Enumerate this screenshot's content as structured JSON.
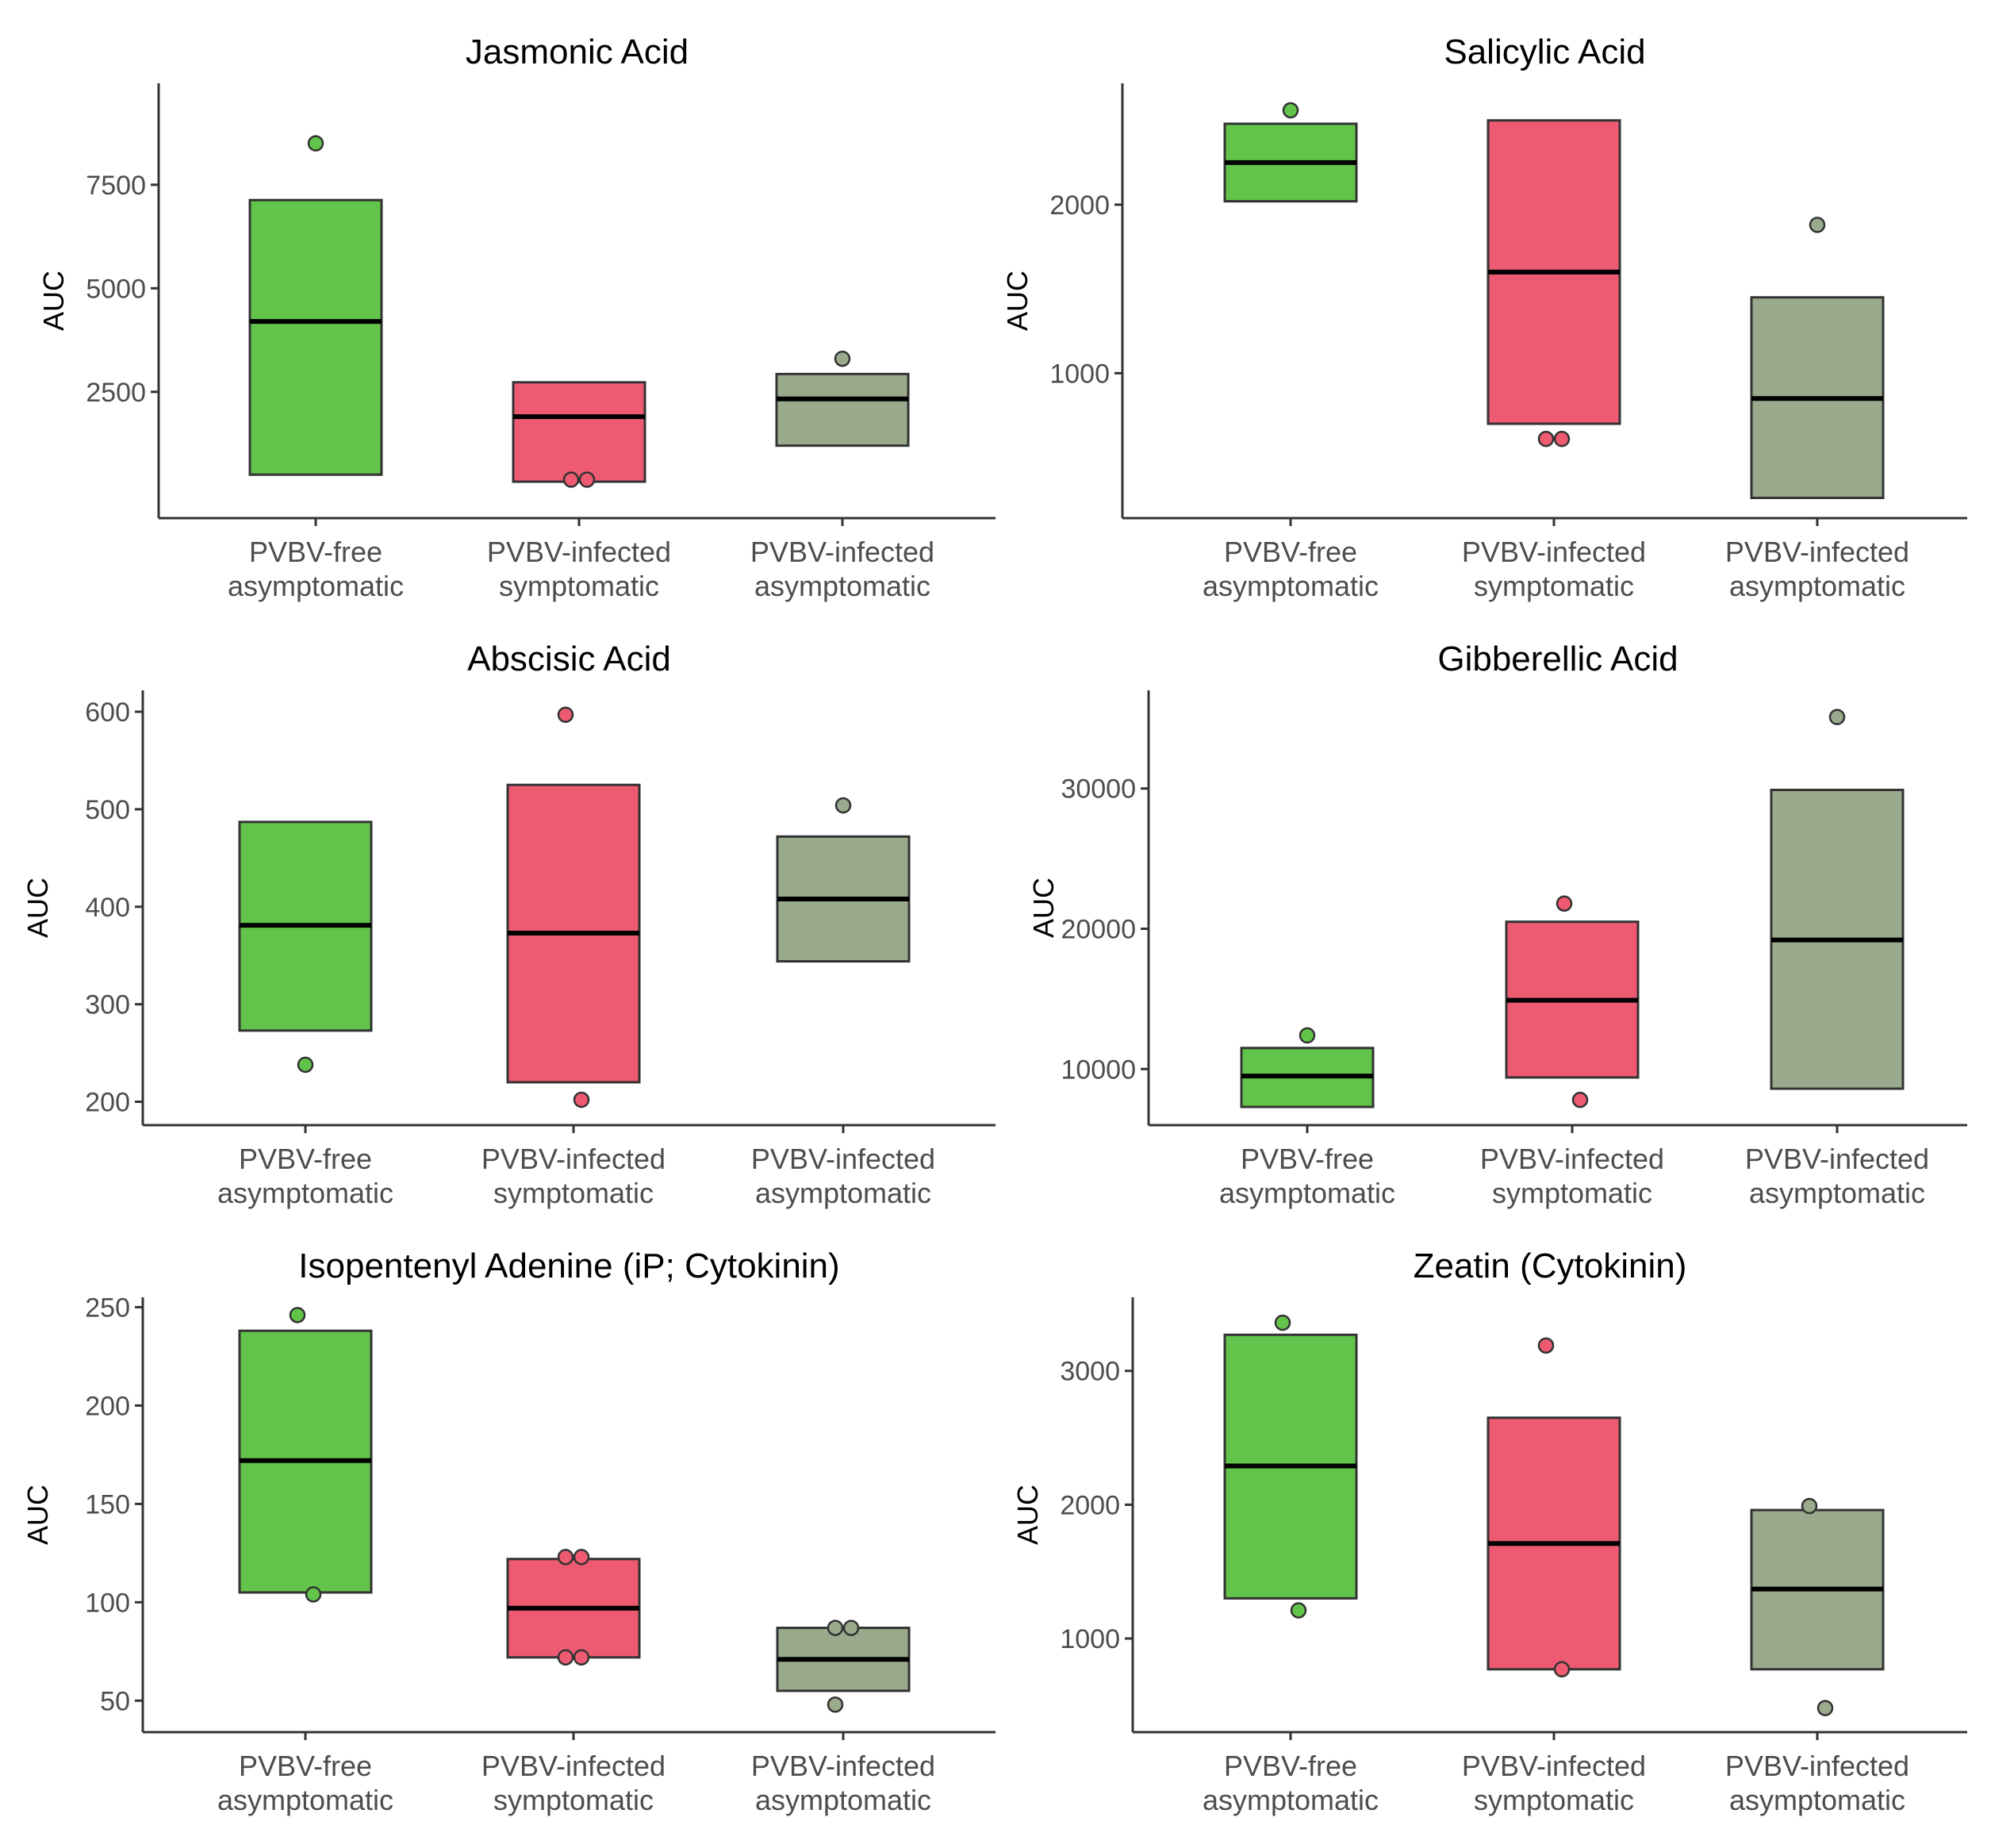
{
  "figure": {
    "ylabel": "AUC",
    "group_colors": [
      "#62c44a",
      "#ee5a72",
      "#9aaa8c"
    ]
  },
  "chart_data": [
    {
      "type": "box",
      "title": "Jasmonic Acid",
      "ylabel": "AUC",
      "ylim": [
        -550,
        9950
      ],
      "yticks": [
        2500,
        5000,
        7500
      ],
      "categories": [
        "PVBV-free\nasymptomatic",
        "PVBV-infected\nsymptomatic",
        "PVBV-infected\nasymptomatic"
      ],
      "boxes": [
        {
          "q1": 500,
          "median": 4200,
          "q3": 7130,
          "points": [
            8500
          ]
        },
        {
          "q1": 330,
          "median": 1900,
          "q3": 2730,
          "points": [
            380,
            380
          ]
        },
        {
          "q1": 1200,
          "median": 2330,
          "q3": 2930,
          "points": [
            3300
          ]
        }
      ]
    },
    {
      "type": "box",
      "title": "Salicylic Acid",
      "ylabel": "AUC",
      "ylim": [
        140,
        2720
      ],
      "yticks": [
        1000,
        2000
      ],
      "categories": [
        "PVBV-free\nasymptomatic",
        "PVBV-infected\nsymptomatic",
        "PVBV-infected\nasymptomatic"
      ],
      "boxes": [
        {
          "q1": 2020,
          "median": 2250,
          "q3": 2480,
          "points": [
            2560
          ]
        },
        {
          "q1": 700,
          "median": 1600,
          "q3": 2500,
          "points": [
            610,
            610
          ]
        },
        {
          "q1": 260,
          "median": 850,
          "q3": 1450,
          "points": [
            1880
          ]
        }
      ]
    },
    {
      "type": "box",
      "title": "Abscisic Acid",
      "ylabel": "AUC",
      "ylim": [
        176,
        622
      ],
      "yticks": [
        200,
        300,
        400,
        500,
        600
      ],
      "categories": [
        "PVBV-free\nasymptomatic",
        "PVBV-infected\nsymptomatic",
        "PVBV-infected\nasymptomatic"
      ],
      "boxes": [
        {
          "q1": 273,
          "median": 381,
          "q3": 487,
          "points": [
            238
          ]
        },
        {
          "q1": 220,
          "median": 373,
          "q3": 525,
          "points": [
            597,
            202
          ]
        },
        {
          "q1": 344,
          "median": 408,
          "q3": 472,
          "points": [
            504
          ]
        }
      ]
    },
    {
      "type": "box",
      "title": "Gibberellic Acid",
      "ylabel": "AUC",
      "ylim": [
        6000,
        37000
      ],
      "yticks": [
        10000,
        20000,
        30000
      ],
      "categories": [
        "PVBV-free\nasymptomatic",
        "PVBV-infected\nsymptomatic",
        "PVBV-infected\nasymptomatic"
      ],
      "boxes": [
        {
          "q1": 7300,
          "median": 9500,
          "q3": 11500,
          "points": [
            12400
          ]
        },
        {
          "q1": 9400,
          "median": 14900,
          "q3": 20500,
          "points": [
            21800,
            7800
          ]
        },
        {
          "q1": 8600,
          "median": 19200,
          "q3": 29900,
          "points": [
            35100
          ]
        }
      ]
    },
    {
      "type": "box",
      "title": "Isopentenyl Adenine (iP; Cytokinin)",
      "ylabel": "AUC",
      "ylim": [
        34,
        255
      ],
      "yticks": [
        50,
        100,
        150,
        200,
        250
      ],
      "categories": [
        "PVBV-free\nasymptomatic",
        "PVBV-infected\nsymptomatic",
        "PVBV-infected\nasymptomatic"
      ],
      "boxes": [
        {
          "q1": 105,
          "median": 172,
          "q3": 238,
          "points": [
            246,
            104
          ]
        },
        {
          "q1": 72,
          "median": 97,
          "q3": 122,
          "points": [
            123,
            123,
            72,
            72
          ]
        },
        {
          "q1": 55,
          "median": 71,
          "q3": 87,
          "points": [
            87,
            87,
            48
          ]
        }
      ]
    },
    {
      "type": "box",
      "title": "Zeatin (Cytokinin)",
      "ylabel": "AUC",
      "ylim": [
        300,
        3550
      ],
      "yticks": [
        1000,
        2000,
        3000
      ],
      "categories": [
        "PVBV-free\nasymptomatic",
        "PVBV-infected\nsymptomatic",
        "PVBV-infected\nasymptomatic"
      ],
      "boxes": [
        {
          "q1": 1300,
          "median": 2290,
          "q3": 3270,
          "points": [
            3360,
            1210
          ]
        },
        {
          "q1": 770,
          "median": 1710,
          "q3": 2650,
          "points": [
            3190,
            770
          ]
        },
        {
          "q1": 770,
          "median": 1370,
          "q3": 1960,
          "points": [
            1990,
            480
          ]
        }
      ]
    }
  ]
}
